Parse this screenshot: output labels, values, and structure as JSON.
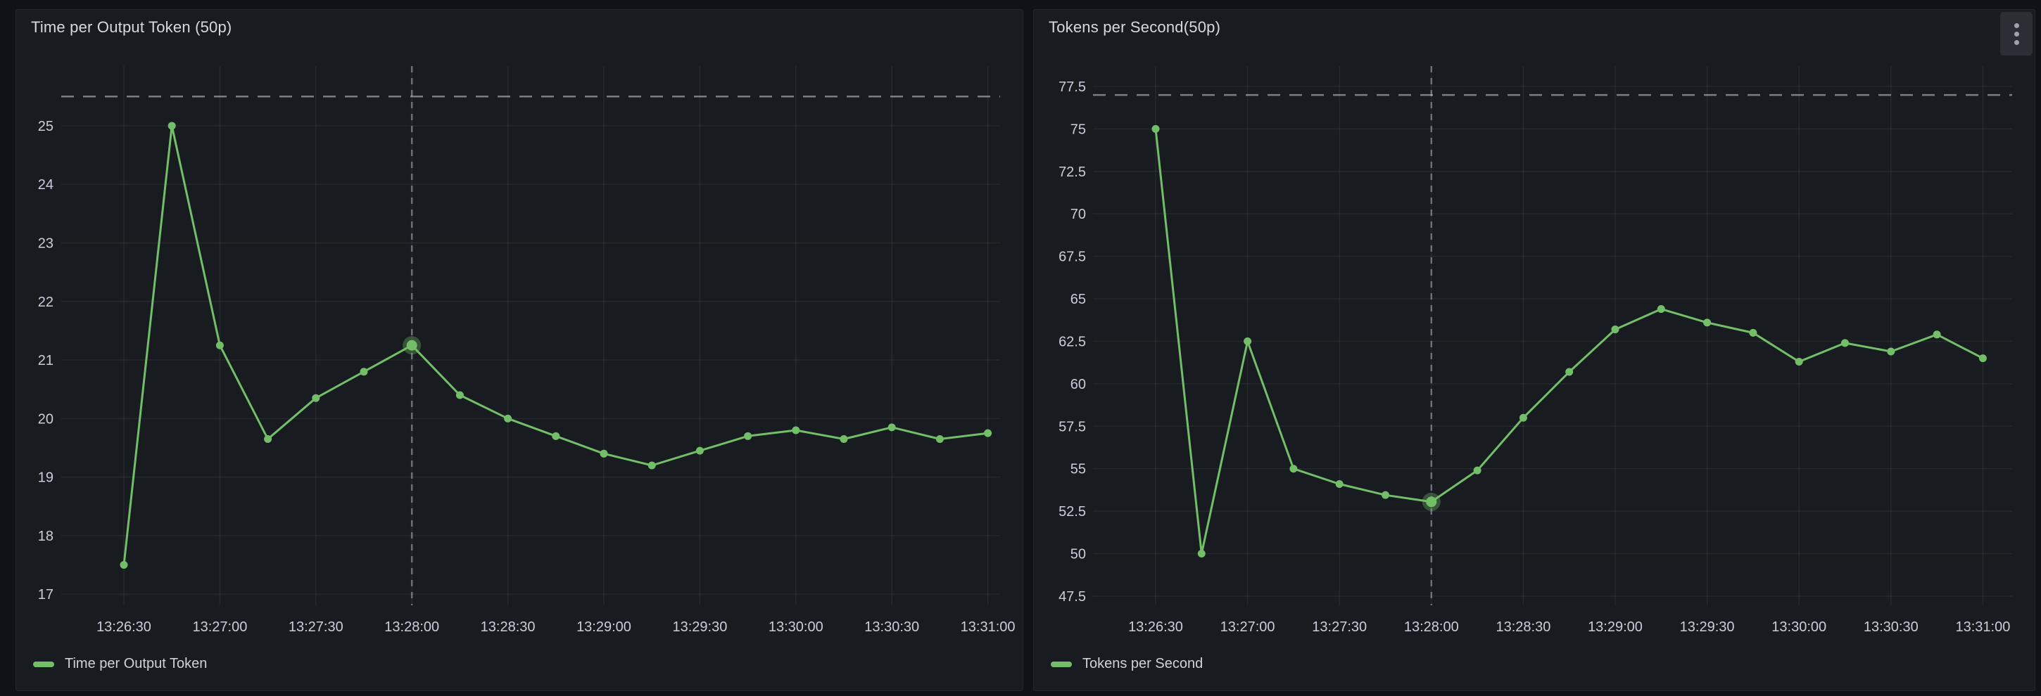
{
  "colors": {
    "page_background": "#111217",
    "panel_background": "#181b1f",
    "series_green": "#73bf69",
    "axis_text": "#ccccdc",
    "grid": "rgba(204,204,220,0.08)",
    "threshold_line": "rgba(204,204,220,0.55)",
    "crosshair_line": "rgba(204,204,220,0.45)"
  },
  "panel_menu": {
    "icon": "kebab-menu-icon"
  },
  "chart_data": [
    {
      "type": "line",
      "title": "Time per Output Token (50p)",
      "legend": "Time per Output Token",
      "color": "#73bf69",
      "grid": true,
      "legend_position": "bottom-left",
      "x": [
        "13:26:30",
        "13:26:45",
        "13:27:00",
        "13:27:15",
        "13:27:30",
        "13:27:45",
        "13:28:00",
        "13:28:15",
        "13:28:30",
        "13:28:45",
        "13:29:00",
        "13:29:15",
        "13:29:30",
        "13:29:45",
        "13:30:00",
        "13:30:15",
        "13:30:30",
        "13:30:45",
        "13:31:00"
      ],
      "values": [
        17.5,
        25.0,
        21.25,
        19.65,
        20.35,
        20.8,
        21.25,
        20.4,
        20.0,
        19.7,
        19.4,
        19.2,
        19.45,
        19.7,
        19.8,
        19.65,
        19.85,
        19.65,
        19.75
      ],
      "x_tick_labels": [
        "13:26:30",
        "13:27:00",
        "13:27:30",
        "13:28:00",
        "13:28:30",
        "13:29:00",
        "13:29:30",
        "13:30:00",
        "13:30:30",
        "13:31:00"
      ],
      "y_tick_values": [
        25,
        24,
        23,
        22,
        21,
        20,
        19,
        18,
        17
      ],
      "y_tick_labels": [
        "25",
        "24",
        "23",
        "22",
        "21",
        "20",
        "19",
        "18",
        "17"
      ],
      "ylim": [
        16.81,
        26.02
      ],
      "threshold_value": 25.5,
      "crosshair_time": "13:28:00",
      "highlight_index": 6,
      "has_menu": false
    },
    {
      "type": "line",
      "title": "Tokens per Second(50p)",
      "legend": "Tokens per Second",
      "color": "#73bf69",
      "grid": true,
      "legend_position": "bottom-left",
      "x": [
        "13:26:30",
        "13:26:45",
        "13:27:00",
        "13:27:15",
        "13:27:30",
        "13:27:45",
        "13:28:00",
        "13:28:15",
        "13:28:30",
        "13:28:45",
        "13:29:00",
        "13:29:15",
        "13:29:30",
        "13:29:45",
        "13:30:00",
        "13:30:15",
        "13:30:30",
        "13:30:45",
        "13:31:00"
      ],
      "values": [
        75.0,
        50.0,
        62.5,
        55.0,
        54.1,
        53.45,
        53.05,
        54.9,
        58.0,
        60.7,
        63.2,
        64.4,
        63.6,
        63.0,
        61.3,
        62.4,
        61.9,
        62.9,
        61.5
      ],
      "x_tick_labels": [
        "13:26:30",
        "13:27:00",
        "13:27:30",
        "13:28:00",
        "13:28:30",
        "13:29:00",
        "13:29:30",
        "13:30:00",
        "13:30:30",
        "13:31:00"
      ],
      "y_tick_values": [
        77.5,
        75,
        72.5,
        70,
        67.5,
        65,
        62.5,
        60,
        57.5,
        55,
        52.5,
        50,
        47.5
      ],
      "y_tick_labels": [
        "77.5",
        "75",
        "72.5",
        "70",
        "67.5",
        "65",
        "62.5",
        "60",
        "57.5",
        "55",
        "52.5",
        "50",
        "47.5"
      ],
      "ylim": [
        46.96,
        78.7
      ],
      "threshold_value": 77.0,
      "crosshair_time": "13:28:00",
      "highlight_index": 6,
      "has_menu": true
    }
  ]
}
